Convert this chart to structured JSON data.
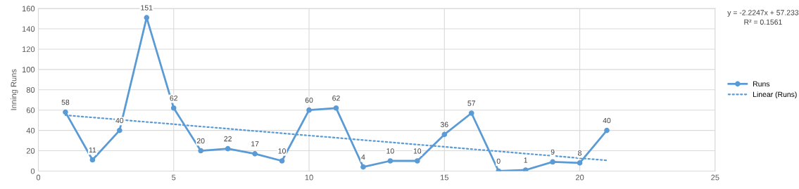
{
  "chart_data": {
    "type": "line",
    "ylabel": "Inning Runs",
    "xlim": [
      0,
      25
    ],
    "xticks": [
      0,
      5,
      10,
      15,
      20,
      25
    ],
    "ylim": [
      0,
      160
    ],
    "yticks": [
      0,
      20,
      40,
      60,
      80,
      100,
      120,
      140,
      160
    ],
    "grid": true,
    "legend": "right",
    "series": [
      {
        "name": "Runs",
        "color": "#5b9bd5",
        "marker": "circle",
        "line_style": "solid",
        "data_labels": true,
        "x": [
          1,
          2,
          3,
          4,
          5,
          6,
          7,
          8,
          9,
          10,
          11,
          12,
          13,
          14,
          15,
          16,
          17,
          18,
          19,
          20,
          21
        ],
        "values": [
          58,
          11,
          40,
          151,
          62,
          20,
          22,
          17,
          10,
          60,
          62,
          4,
          10,
          10,
          36,
          57,
          0,
          1,
          9,
          8,
          40
        ]
      },
      {
        "name": "Linear (Runs)",
        "color": "#5b9bd5",
        "marker": "none",
        "line_style": "dotted",
        "x": [
          1,
          21
        ],
        "values": [
          55.0,
          10.5
        ]
      }
    ],
    "annotations": [
      "y = -2.2247x + 57.233",
      "R² = 0.1561"
    ]
  }
}
